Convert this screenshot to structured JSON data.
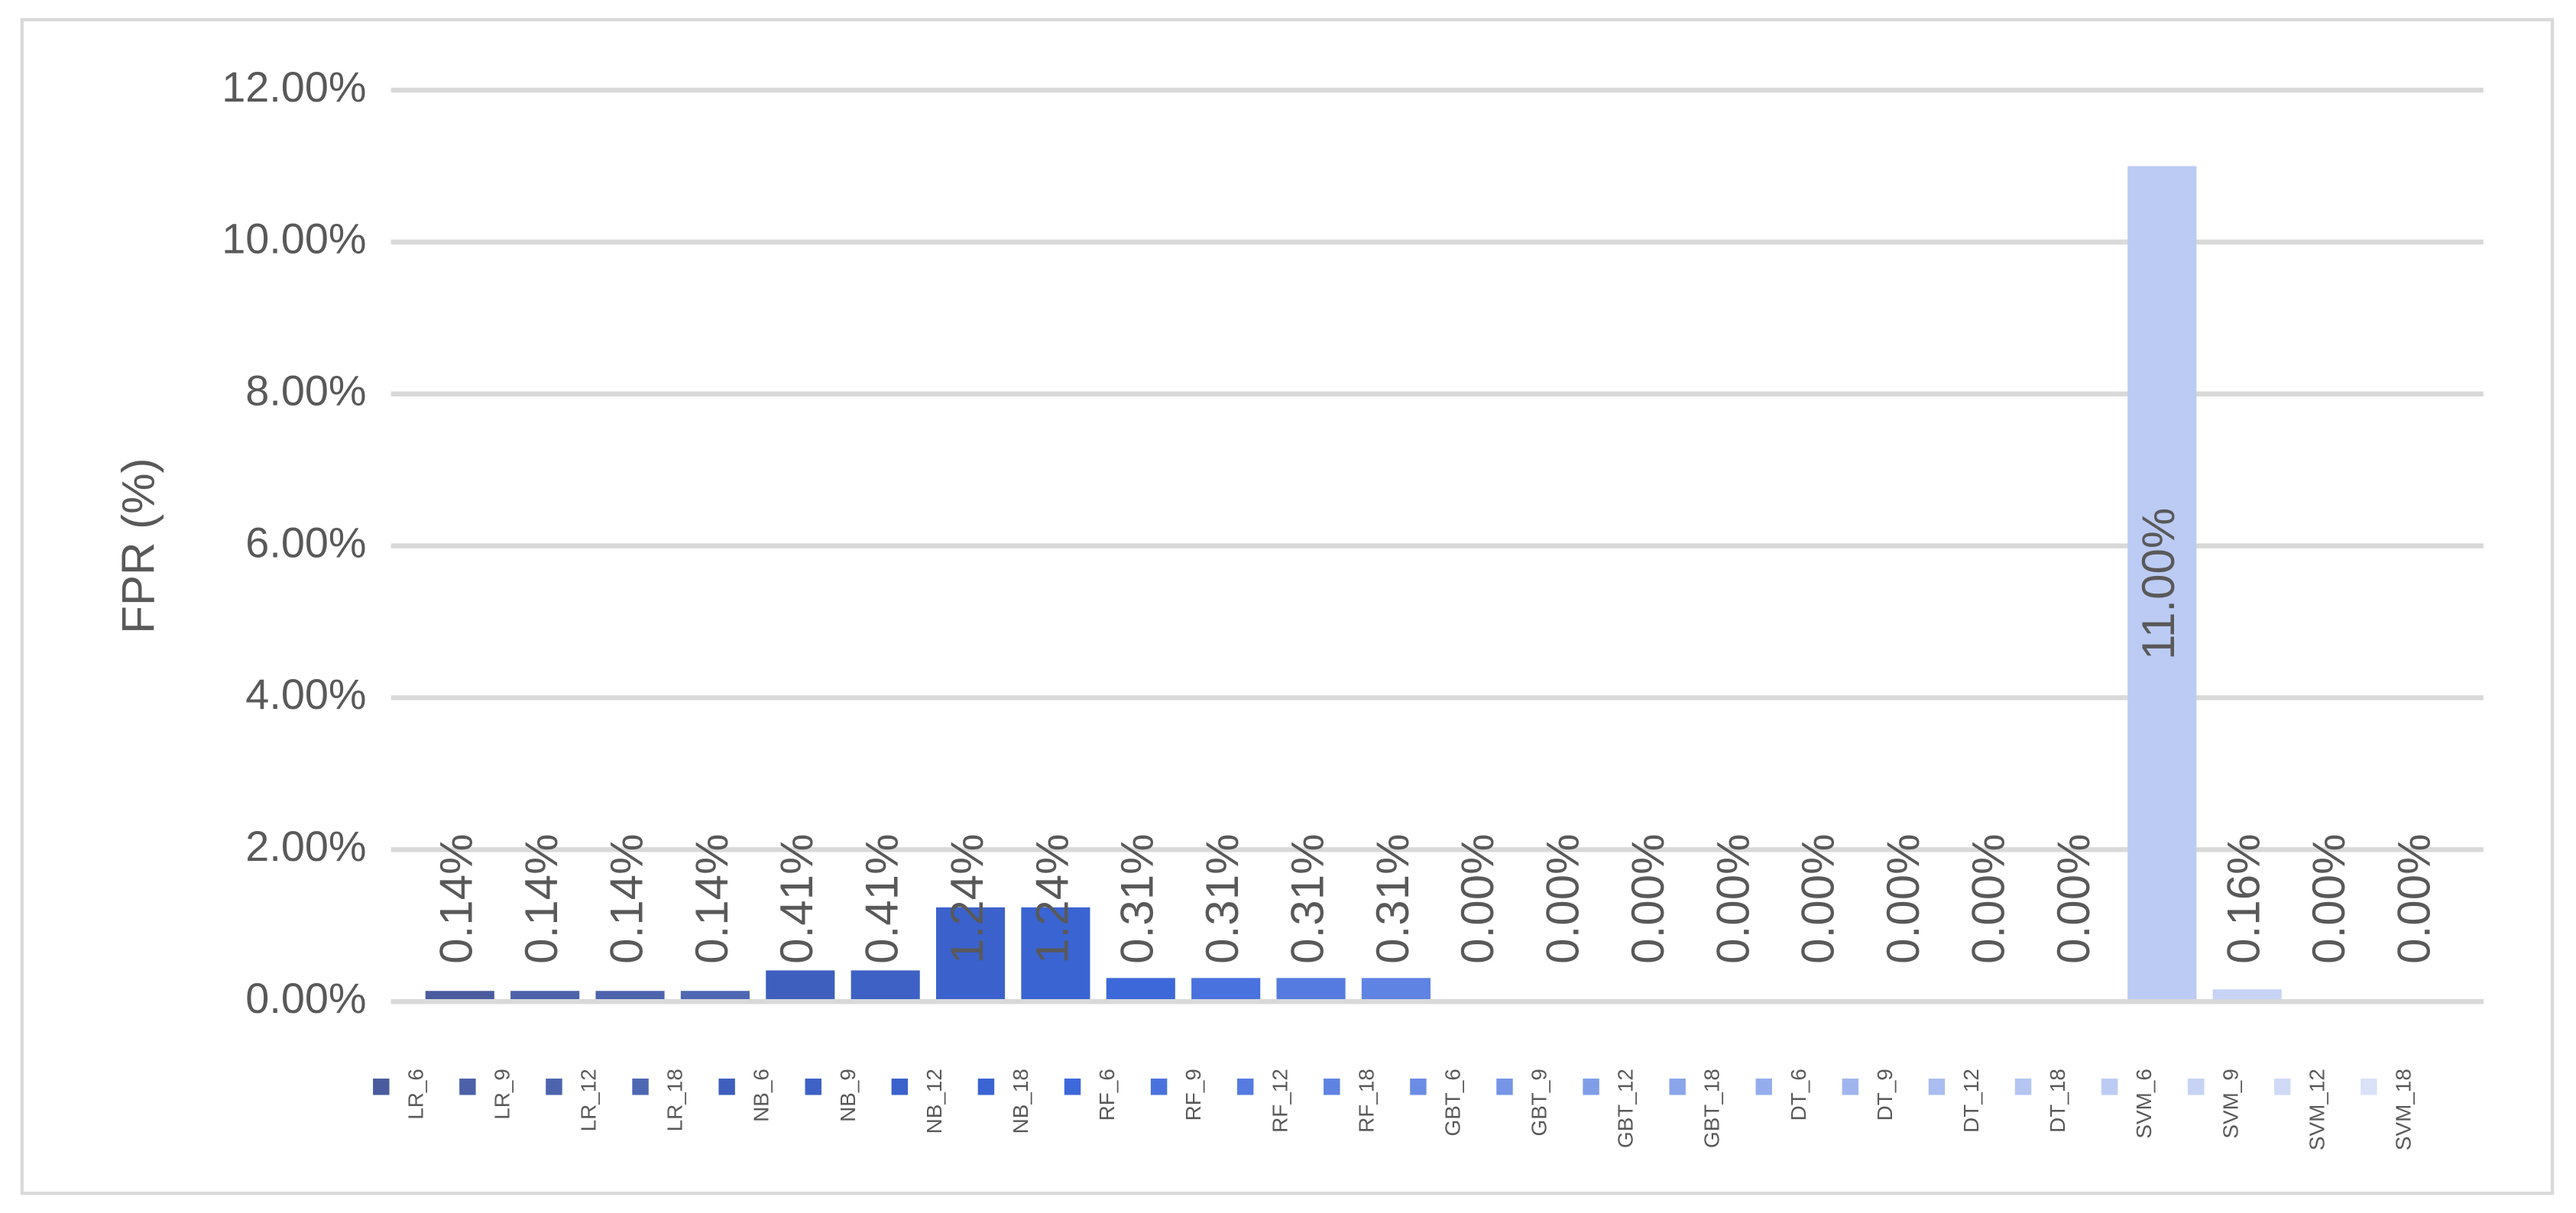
{
  "chart_data": {
    "type": "bar",
    "y_label": "FPR (%)",
    "ylim": [
      0,
      12
    ],
    "yticks": [
      {
        "value": 0,
        "label": "0.00%"
      },
      {
        "value": 2,
        "label": "2.00%"
      },
      {
        "value": 4,
        "label": "4.00%"
      },
      {
        "value": 6,
        "label": "6.00%"
      },
      {
        "value": 8,
        "label": "8.00%"
      },
      {
        "value": 10,
        "label": "10.00%"
      },
      {
        "value": 12,
        "label": "12.00%"
      }
    ],
    "grid": true,
    "legend": "bottom",
    "series": [
      {
        "name": "LR_6",
        "color": "#4a5c9e",
        "values": [
          0.14
        ],
        "value_labels": [
          "0.14%"
        ]
      },
      {
        "name": "LR_9",
        "color": "#4c61a8",
        "values": [
          0.14
        ],
        "value_labels": [
          "0.14%"
        ]
      },
      {
        "name": "LR_12",
        "color": "#4d64ad",
        "values": [
          0.14
        ],
        "value_labels": [
          "0.14%"
        ]
      },
      {
        "name": "LR_18",
        "color": "#4e67b3",
        "values": [
          0.14
        ],
        "value_labels": [
          "0.14%"
        ]
      },
      {
        "name": "NB_6",
        "color": "#3f5fbf",
        "values": [
          0.41
        ],
        "value_labels": [
          "0.41%"
        ]
      },
      {
        "name": "NB_9",
        "color": "#3e61c6",
        "values": [
          0.41
        ],
        "value_labels": [
          "0.41%"
        ]
      },
      {
        "name": "NB_12",
        "color": "#3b62cc",
        "values": [
          1.24
        ],
        "value_labels": [
          "1.24%"
        ]
      },
      {
        "name": "NB_18",
        "color": "#3a64d2",
        "values": [
          1.24
        ],
        "value_labels": [
          "1.24%"
        ]
      },
      {
        "name": "RF_6",
        "color": "#3d68d9",
        "values": [
          0.31
        ],
        "value_labels": [
          "0.31%"
        ]
      },
      {
        "name": "RF_9",
        "color": "#4a72de",
        "values": [
          0.31
        ],
        "value_labels": [
          "0.31%"
        ]
      },
      {
        "name": "RF_12",
        "color": "#557be0",
        "values": [
          0.31
        ],
        "value_labels": [
          "0.31%"
        ]
      },
      {
        "name": "RF_18",
        "color": "#5f83e3",
        "values": [
          0.31
        ],
        "value_labels": [
          "0.31%"
        ]
      },
      {
        "name": "GBT_6",
        "color": "#6b8ce4",
        "values": [
          0.0
        ],
        "value_labels": [
          "0.00%"
        ]
      },
      {
        "name": "GBT_9",
        "color": "#7595e6",
        "values": [
          0.0
        ],
        "value_labels": [
          "0.00%"
        ]
      },
      {
        "name": "GBT_12",
        "color": "#809de8",
        "values": [
          0.0
        ],
        "value_labels": [
          "0.00%"
        ]
      },
      {
        "name": "GBT_18",
        "color": "#8aa5ea",
        "values": [
          0.0
        ],
        "value_labels": [
          "0.00%"
        ]
      },
      {
        "name": "DT_6",
        "color": "#95adec",
        "values": [
          0.0
        ],
        "value_labels": [
          "0.00%"
        ]
      },
      {
        "name": "DT_9",
        "color": "#a0b5ee",
        "values": [
          0.0
        ],
        "value_labels": [
          "0.00%"
        ]
      },
      {
        "name": "DT_12",
        "color": "#aabdf0",
        "values": [
          0.0
        ],
        "value_labels": [
          "0.00%"
        ]
      },
      {
        "name": "DT_18",
        "color": "#b4c5f2",
        "values": [
          0.0
        ],
        "value_labels": [
          "0.00%"
        ]
      },
      {
        "name": "SVM_6",
        "color": "#bccbf3",
        "values": [
          11.0
        ],
        "value_labels": [
          "11.00%"
        ]
      },
      {
        "name": "SVM_9",
        "color": "#c6d3f5",
        "values": [
          0.16
        ],
        "value_labels": [
          "0.16%"
        ]
      },
      {
        "name": "SVM_12",
        "color": "#d0daf7",
        "values": [
          0.0
        ],
        "value_labels": [
          "0.00%"
        ]
      },
      {
        "name": "SVM_18",
        "color": "#dae2f8",
        "values": [
          0.0
        ],
        "value_labels": [
          "0.00%"
        ]
      }
    ]
  }
}
